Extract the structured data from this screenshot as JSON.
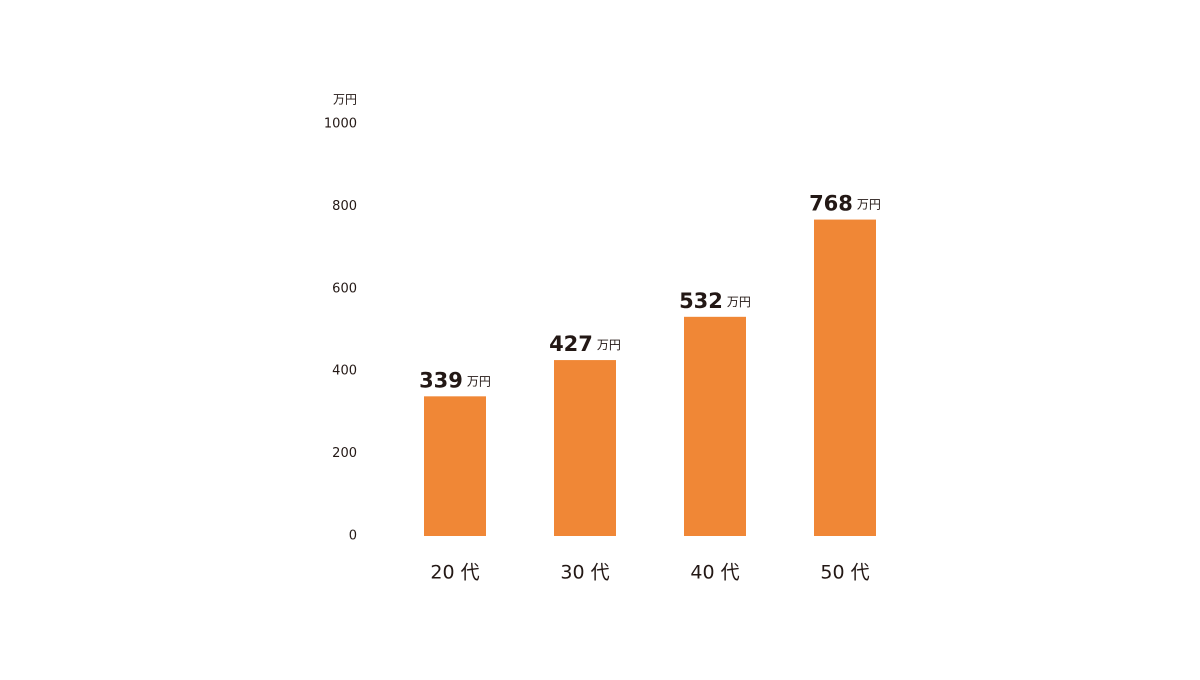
{
  "chart_data": {
    "type": "bar",
    "unit": "万円",
    "categories": [
      "20 代",
      "30 代",
      "40 代",
      "50 代"
    ],
    "values": [
      339,
      427,
      532,
      768
    ],
    "color": "#f08736",
    "ylim": [
      0,
      1000
    ],
    "yticks": [
      0,
      200,
      400,
      600,
      800,
      1000
    ],
    "grid": false
  }
}
